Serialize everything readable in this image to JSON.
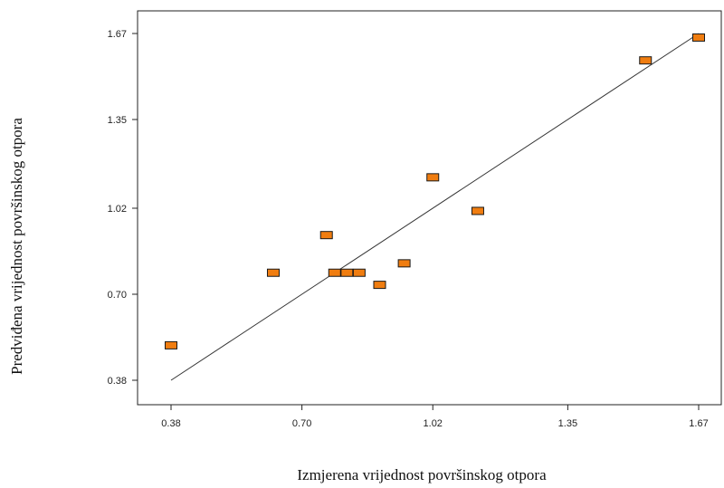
{
  "chart_data": {
    "type": "scatter",
    "xlabel": "Izmjerena  vrijednost površinskog otpora",
    "ylabel": "Predviđena vrijednost površinskog otpora",
    "xlim": [
      0.38,
      1.67
    ],
    "ylim": [
      0.38,
      1.67
    ],
    "xticks": [
      "0.38",
      "0.70",
      "1.02",
      "1.35",
      "1.67"
    ],
    "yticks": [
      "0.38",
      "0.70",
      "1.02",
      "1.35",
      "1.67"
    ],
    "grid": false,
    "marker_color": "#f07d10",
    "marker_edge_color": "#1a1a1a",
    "points": [
      {
        "x": 0.38,
        "y": 0.51
      },
      {
        "x": 0.63,
        "y": 0.78
      },
      {
        "x": 0.76,
        "y": 0.92
      },
      {
        "x": 0.78,
        "y": 0.78
      },
      {
        "x": 0.81,
        "y": 0.78
      },
      {
        "x": 0.84,
        "y": 0.78
      },
      {
        "x": 0.89,
        "y": 0.735
      },
      {
        "x": 0.95,
        "y": 0.815
      },
      {
        "x": 1.02,
        "y": 1.135
      },
      {
        "x": 1.13,
        "y": 1.01
      },
      {
        "x": 1.54,
        "y": 1.57
      },
      {
        "x": 1.67,
        "y": 1.655
      }
    ],
    "fit_line": {
      "x": [
        0.38,
        1.67
      ],
      "y": [
        0.38,
        1.67
      ]
    }
  }
}
